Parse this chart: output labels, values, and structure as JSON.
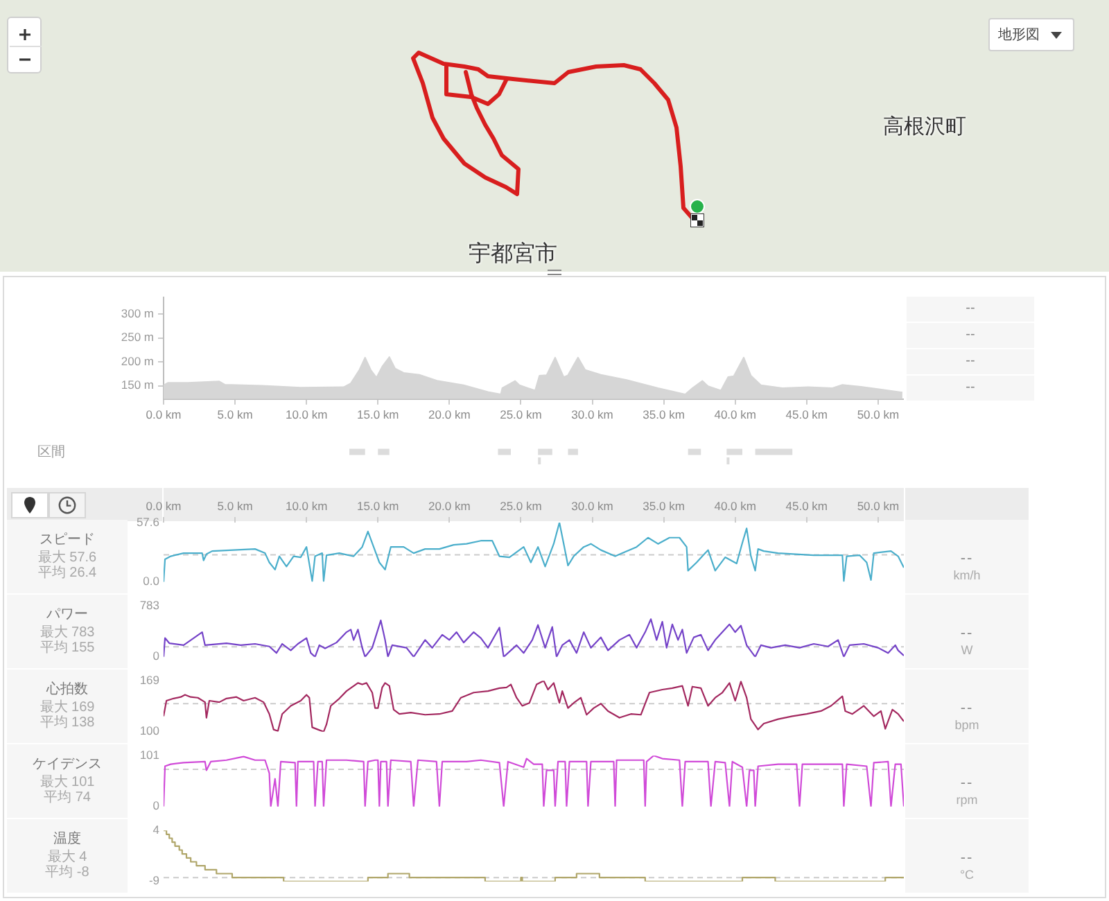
{
  "chart_data": [
    {
      "type": "other",
      "annotations": [
        "地形図",
        "宇都宮市",
        "高根沢町"
      ]
    },
    {
      "type": "area",
      "color": "#d6d6d6",
      "tick_labels": "y",
      "x": [
        0,
        0.3,
        1.7,
        3.9,
        4.3,
        6.9,
        9.6,
        12.6,
        13.1,
        13.7,
        14.1,
        14.5,
        14.9,
        15.3,
        15.8,
        16.2,
        16.8,
        17.9,
        19.2,
        21.0,
        22.7,
        23.6,
        23.7,
        24.6,
        24.9,
        26.0,
        26.3,
        26.8,
        27.4,
        28.0,
        28.3,
        29.0,
        29.5,
        30.6,
        32.4,
        34.6,
        36.5,
        37.0,
        37.7,
        38.1,
        39.0,
        39.5,
        39.9,
        40.6,
        41.1,
        41.8,
        43.3,
        45.1,
        46.8,
        47.5,
        48.8,
        51.7
      ],
      "values": [
        151,
        156,
        156,
        159,
        152,
        150,
        146,
        147,
        155,
        183,
        209,
        183,
        167,
        190,
        210,
        186,
        177,
        173,
        160,
        151,
        137,
        132,
        145,
        160,
        151,
        140,
        171,
        172,
        209,
        168,
        172,
        209,
        183,
        173,
        162,
        145,
        132,
        145,
        160,
        149,
        140,
        168,
        170,
        209,
        171,
        151,
        145,
        147,
        145,
        152,
        148,
        136
      ],
      "xlim": [
        0,
        51.8
      ],
      "xticks": [
        0,
        5,
        10,
        15,
        20,
        25,
        30,
        35,
        40,
        45,
        50
      ],
      "ylim": [
        122,
        335
      ],
      "yticks": [
        {
          "value": 150,
          "label": "150 m"
        },
        {
          "value": 200,
          "label": "200 m"
        },
        {
          "value": 250,
          "label": "250 m"
        },
        {
          "value": 300,
          "label": "300 m"
        }
      ],
      "annotations": [
        "--",
        "--",
        "--",
        "--"
      ]
    },
    {
      "type": "bar",
      "orientation": "horizontal",
      "categories": [
        "区間"
      ],
      "xlim": [
        0,
        51.8
      ],
      "xticks": [
        {
          "value": 0,
          "label": "0.0 km"
        },
        {
          "value": 5,
          "label": "5.0 km"
        },
        {
          "value": 10,
          "label": "10.0 km"
        },
        {
          "value": 15,
          "label": "15.0 km"
        },
        {
          "value": 20,
          "label": "20.0 km"
        },
        {
          "value": 25,
          "label": "25.0 km"
        },
        {
          "value": 30,
          "label": "30.0 km"
        },
        {
          "value": 35,
          "label": "35.0 km"
        },
        {
          "value": 40,
          "label": "40.0 km"
        },
        {
          "value": 45,
          "label": "45.0 km"
        },
        {
          "value": 50,
          "label": "50.0 km"
        }
      ],
      "series": [
        {
          "color": "#dcdcdc",
          "values": [
            1.1
          ],
          "base": [
            13.0
          ]
        },
        {
          "color": "#dcdcdc",
          "values": [
            0.8
          ],
          "base": [
            15.0
          ]
        },
        {
          "color": "#dcdcdc",
          "values": [
            0.9
          ],
          "base": [
            23.4
          ]
        },
        {
          "color": "#dcdcdc",
          "values": [
            1.0
          ],
          "base": [
            26.2
          ]
        },
        {
          "color": "#dcdcdc",
          "values": [
            0.7
          ],
          "base": [
            28.3
          ]
        },
        {
          "color": "#dcdcdc",
          "values": [
            0.9
          ],
          "base": [
            36.7
          ]
        },
        {
          "color": "#dcdcdc",
          "values": [
            1.1
          ],
          "base": [
            39.4
          ]
        },
        {
          "color": "#dcdcdc",
          "values": [
            2.6
          ],
          "base": [
            41.4
          ]
        }
      ],
      "ref_lines": [
        {
          "axis": "x",
          "value": 26.3,
          "color": "#dcdcdc"
        },
        {
          "axis": "x",
          "value": 39.5,
          "color": "#dcdcdc"
        }
      ]
    },
    {
      "type": "line",
      "title": "スピード",
      "annotations": [
        "最大 57.6",
        "平均 26.4",
        "--"
      ],
      "ylabel": "km/h",
      "color": "#4aaecb",
      "x": [
        0,
        0.1,
        0.5,
        1.4,
        2.7,
        2.8,
        3.0,
        3.4,
        4.9,
        6.4,
        7.1,
        7.4,
        7.8,
        8.1,
        8.6,
        9.1,
        9.6,
        10.0,
        10.4,
        10.6,
        11.1,
        11.2,
        11.4,
        12.3,
        13.3,
        13.9,
        14.3,
        14.7,
        15.1,
        15.5,
        15.9,
        16.8,
        17.5,
        18.3,
        19.3,
        20.3,
        21.2,
        22.2,
        23.0,
        23.5,
        24.2,
        25.2,
        25.7,
        26.2,
        26.7,
        27.3,
        27.7,
        28.0,
        28.3,
        28.7,
        29.4,
        29.9,
        30.6,
        31.6,
        32.1,
        33.1,
        33.9,
        34.6,
        35.4,
        36.1,
        36.6,
        36.7,
        37.3,
        38.1,
        38.6,
        39.3,
        40.1,
        40.5,
        40.8,
        41.1,
        41.4,
        41.6,
        42.0,
        43.0,
        45.5,
        47.5,
        47.6,
        47.8,
        48.7,
        49.2,
        49.5,
        49.7,
        50.9,
        51.4,
        51.8
      ],
      "values": [
        0,
        22,
        25,
        28,
        28,
        21,
        27,
        30,
        31,
        32,
        28,
        19,
        12,
        25,
        15,
        25,
        24,
        34,
        1,
        25,
        28,
        1,
        26,
        28,
        25,
        34,
        49,
        34,
        19,
        12,
        34,
        34,
        28,
        32,
        32,
        36,
        37,
        40,
        40,
        25,
        24,
        34,
        19,
        34,
        15,
        37,
        57.6,
        37,
        16,
        25,
        34,
        37,
        31,
        25,
        28,
        34,
        43,
        37,
        43,
        43,
        34,
        11,
        19,
        31,
        11,
        24,
        18,
        38,
        52,
        25,
        11,
        32,
        30,
        28,
        26,
        26,
        1,
        25,
        26,
        19,
        2,
        28,
        30,
        25,
        14
      ],
      "xlim": [
        0,
        51.8
      ],
      "xticks": [
        {
          "value": 0,
          "label": "0.0 km"
        },
        {
          "value": 5,
          "label": "5.0 km"
        },
        {
          "value": 10,
          "label": "10.0 km"
        },
        {
          "value": 15,
          "label": "15.0 km"
        },
        {
          "value": 20,
          "label": "20.0 km"
        },
        {
          "value": 25,
          "label": "25.0 km"
        },
        {
          "value": 30,
          "label": "30.0 km"
        },
        {
          "value": 35,
          "label": "35.0 km"
        },
        {
          "value": 40,
          "label": "40.0 km"
        },
        {
          "value": 45,
          "label": "45.0 km"
        },
        {
          "value": 50,
          "label": "50.0 km"
        }
      ],
      "ylim": [
        0,
        57.6
      ],
      "yticks": [
        {
          "value": 0,
          "label": "0.0"
        },
        57.6
      ],
      "ref_lines": [
        {
          "axis": "y",
          "value": 26.4,
          "color": "#cccccc",
          "line_style": "dashed"
        }
      ]
    },
    {
      "type": "line",
      "title": "パワー",
      "annotations": [
        "最大 783",
        "平均 155",
        "--"
      ],
      "ylabel": "W",
      "color": "#7442c8",
      "tick_labels": "y",
      "x": [
        0,
        0.1,
        0.4,
        1.4,
        2.7,
        2.9,
        4.4,
        5.4,
        6.4,
        7.4,
        7.9,
        8.3,
        8.9,
        9.4,
        10.0,
        10.3,
        10.6,
        10.9,
        11.3,
        12.1,
        12.8,
        13.1,
        13.3,
        13.6,
        13.9,
        14.1,
        14.6,
        15.2,
        15.5,
        15.7,
        16.0,
        17.0,
        17.5,
        18.3,
        18.8,
        19.5,
        20.0,
        20.5,
        21.0,
        21.7,
        22.2,
        22.7,
        23.5,
        23.8,
        24.7,
        25.2,
        25.8,
        26.2,
        26.7,
        27.2,
        27.5,
        27.9,
        28.4,
        28.9,
        29.4,
        29.9,
        30.6,
        31.1,
        31.9,
        32.6,
        33.1,
        33.7,
        34.1,
        34.5,
        34.9,
        35.2,
        35.6,
        36.0,
        36.3,
        36.6,
        37.1,
        37.6,
        38.1,
        38.6,
        39.1,
        39.6,
        40.0,
        40.4,
        40.8,
        41.4,
        41.8,
        42.5,
        43.5,
        44.5,
        45.5,
        46.5,
        47.2,
        47.6,
        48.0,
        49.0,
        50.0,
        50.7,
        51.2,
        51.4,
        51.8
      ],
      "values": [
        0,
        290,
        210,
        180,
        380,
        180,
        210,
        180,
        200,
        160,
        60,
        200,
        100,
        200,
        290,
        60,
        0,
        180,
        130,
        220,
        380,
        420,
        260,
        420,
        140,
        0,
        140,
        560,
        260,
        0,
        180,
        140,
        0,
        260,
        140,
        340,
        260,
        380,
        220,
        380,
        290,
        140,
        450,
        0,
        180,
        60,
        260,
        490,
        140,
        460,
        0,
        180,
        260,
        60,
        380,
        140,
        300,
        100,
        260,
        340,
        140,
        380,
        580,
        260,
        540,
        140,
        500,
        260,
        420,
        60,
        300,
        340,
        100,
        260,
        380,
        500,
        380,
        480,
        180,
        0,
        180,
        140,
        180,
        140,
        200,
        160,
        260,
        0,
        180,
        200,
        140,
        60,
        180,
        100,
        20
      ],
      "xlim": [
        0,
        51.8
      ],
      "ylim": [
        0,
        783
      ],
      "yticks": [
        0,
        783
      ],
      "ref_lines": [
        {
          "axis": "y",
          "value": 155,
          "color": "#cccccc",
          "line_style": "dashed"
        }
      ]
    },
    {
      "type": "line",
      "title": "心拍数",
      "annotations": [
        "最大 169",
        "平均 138",
        "--"
      ],
      "ylabel": "bpm",
      "color": "#a3285f",
      "tick_labels": "y",
      "x": [
        0.0,
        0.2,
        0.7,
        1.2,
        1.5,
        1.9,
        2.4,
        2.9,
        3.0,
        3.2,
        3.9,
        4.4,
        5.1,
        5.6,
        6.4,
        7.0,
        7.4,
        7.7,
        8.0,
        8.3,
        8.9,
        9.6,
        10.0,
        10.2,
        10.4,
        10.8,
        11.2,
        11.4,
        11.7,
        12.3,
        12.8,
        13.6,
        13.9,
        14.2,
        14.6,
        14.8,
        15.0,
        15.3,
        15.5,
        15.8,
        16.1,
        16.5,
        17.3,
        18.3,
        19.3,
        20.2,
        20.8,
        21.7,
        22.7,
        23.5,
        24.0,
        24.3,
        24.7,
        25.1,
        25.6,
        26.1,
        26.6,
        26.9,
        27.3,
        27.7,
        27.9,
        28.3,
        28.7,
        29.2,
        29.6,
        30.1,
        30.6,
        31.1,
        31.9,
        32.7,
        33.4,
        34.0,
        34.9,
        35.6,
        36.3,
        36.7,
        37.0,
        37.6,
        38.1,
        38.6,
        39.1,
        39.6,
        40.0,
        40.4,
        40.8,
        41.1,
        41.6,
        42.0,
        43.0,
        44.0,
        45.0,
        46.0,
        46.7,
        47.5,
        47.7,
        48.2,
        49.0,
        49.7,
        50.2,
        50.5,
        51.0,
        51.4,
        51.8
      ],
      "values": [
        121,
        142,
        145,
        147,
        150,
        147,
        146,
        140,
        119,
        142,
        140,
        145,
        147,
        142,
        146,
        140,
        124,
        103,
        101,
        124,
        135,
        142,
        150,
        146,
        106,
        103,
        100,
        110,
        135,
        145,
        155,
        166,
        164,
        166,
        153,
        132,
        132,
        160,
        166,
        162,
        130,
        124,
        126,
        123,
        124,
        128,
        146,
        153,
        155,
        159,
        160,
        164,
        146,
        135,
        139,
        164,
        169,
        157,
        166,
        139,
        155,
        132,
        139,
        146,
        123,
        132,
        138,
        128,
        119,
        124,
        123,
        153,
        157,
        159,
        162,
        135,
        161,
        159,
        135,
        146,
        153,
        166,
        142,
        168,
        146,
        117,
        103,
        111,
        117,
        121,
        124,
        128,
        135,
        148,
        128,
        124,
        135,
        121,
        128,
        104,
        130,
        124,
        114
      ],
      "xlim": [
        0,
        51.8
      ],
      "ylim": [
        100,
        169
      ],
      "yticks": [
        100,
        169
      ],
      "ref_lines": [
        {
          "axis": "y",
          "value": 138,
          "color": "#cccccc",
          "line_style": "dashed"
        }
      ]
    },
    {
      "type": "line",
      "title": "ケイデンス",
      "annotations": [
        "最大 101",
        "平均 74",
        "--"
      ],
      "ylabel": "rpm",
      "color": "#d04ad8",
      "tick_labels": "y",
      "x": [
        0,
        0.1,
        0.5,
        1.4,
        2.9,
        3.0,
        3.3,
        4.4,
        5.6,
        6.4,
        7.1,
        7.4,
        7.5,
        7.8,
        8.0,
        8.2,
        9.2,
        9.3,
        9.4,
        10.5,
        10.6,
        10.8,
        11.1,
        11.2,
        11.4,
        12.8,
        14.0,
        14.1,
        14.3,
        14.8,
        15.0,
        15.1,
        15.2,
        15.6,
        15.7,
        15.9,
        17.3,
        17.5,
        17.8,
        19.1,
        19.3,
        19.5,
        21.2,
        22.2,
        23.5,
        23.8,
        24.1,
        25.2,
        25.4,
        25.9,
        26.5,
        26.6,
        26.8,
        27.3,
        27.4,
        27.6,
        28.1,
        28.2,
        28.4,
        29.6,
        29.7,
        29.9,
        31.1,
        31.5,
        31.6,
        31.7,
        33.1,
        33.6,
        33.7,
        33.8,
        34.3,
        34.9,
        36.1,
        36.3,
        36.5,
        38.1,
        38.3,
        38.6,
        39.3,
        39.6,
        39.8,
        40.5,
        40.8,
        41.0,
        41.3,
        41.4,
        41.6,
        43.0,
        44.3,
        44.5,
        44.7,
        46.0,
        47.5,
        47.6,
        47.8,
        49.2,
        49.5,
        49.7,
        50.7,
        50.9,
        51.2,
        51.6,
        51.8
      ],
      "values": [
        0,
        80,
        84,
        87,
        89,
        72,
        89,
        92,
        99,
        92,
        92,
        66,
        0,
        55,
        0,
        89,
        87,
        0,
        89,
        89,
        0,
        89,
        89,
        0,
        92,
        92,
        89,
        0,
        89,
        92,
        92,
        0,
        89,
        89,
        0,
        92,
        89,
        0,
        92,
        89,
        0,
        89,
        89,
        92,
        87,
        0,
        89,
        78,
        95,
        84,
        84,
        0,
        72,
        72,
        0,
        89,
        89,
        0,
        89,
        89,
        0,
        89,
        89,
        89,
        0,
        92,
        92,
        92,
        0,
        89,
        101,
        95,
        92,
        0,
        89,
        89,
        0,
        89,
        87,
        0,
        89,
        78,
        0,
        72,
        72,
        0,
        80,
        84,
        84,
        0,
        84,
        84,
        84,
        0,
        84,
        80,
        0,
        87,
        89,
        0,
        84,
        84,
        0
      ],
      "xlim": [
        0,
        51.8
      ],
      "ylim": [
        0,
        101
      ],
      "yticks": [
        0,
        101
      ],
      "ref_lines": [
        {
          "axis": "y",
          "value": 74,
          "color": "#cccccc",
          "line_style": "dashed"
        }
      ]
    },
    {
      "type": "step",
      "title": "温度",
      "annotations": [
        "最大 4",
        "平均 -8",
        "--"
      ],
      "ylabel": "°C",
      "color": "#b0a66a",
      "tick_labels": "y",
      "x": [
        0,
        0.2,
        0.4,
        0.6,
        0.8,
        1.1,
        1.3,
        1.6,
        1.9,
        2.3,
        2.9,
        3.7,
        4.8,
        8.4,
        14.3,
        15.7,
        17.2,
        22.5,
        25.0,
        25.1,
        27.4,
        28.9,
        30.5,
        33.7,
        40.5,
        42.8,
        50.5,
        51.8
      ],
      "values": [
        4,
        3,
        2,
        1,
        0,
        -1,
        -2,
        -3,
        -4,
        -5,
        -6,
        -7,
        -8,
        -9,
        -8,
        -7,
        -8,
        -9,
        -8,
        -9,
        -8,
        -7,
        -8,
        -9,
        -8,
        -9,
        -8,
        -8
      ],
      "xlim": [
        0,
        51.8
      ],
      "ylim": [
        -9,
        4
      ],
      "yticks": [
        -9,
        4
      ],
      "ref_lines": [
        {
          "axis": "y",
          "value": -8,
          "color": "#cccccc",
          "line_style": "dashed"
        }
      ]
    }
  ]
}
